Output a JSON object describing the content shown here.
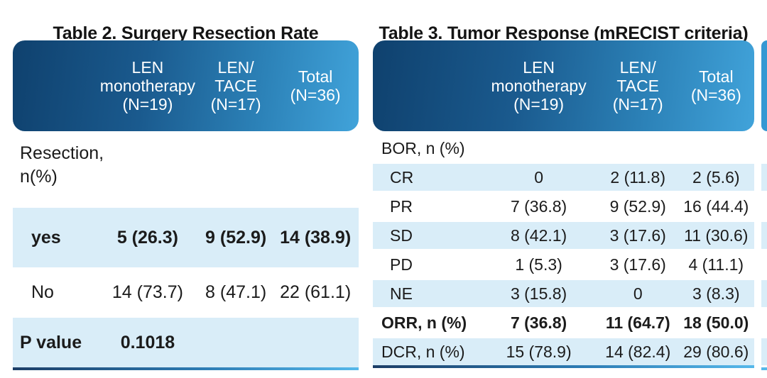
{
  "colors": {
    "header_gradient_left": "#0f416e",
    "header_gradient_right": "#41a3da",
    "row_highlight": "#d9edf8",
    "accent_line_left": "#1c3e67",
    "accent_line_right": "#56b8ea",
    "header_text": "#ffffff",
    "body_text": "#1b1b1b"
  },
  "table2": {
    "title": "Table 2. Surgery Resection Rate",
    "header": {
      "col1": [
        "LEN",
        "monotherapy",
        "(N=19)"
      ],
      "col2": [
        "LEN/",
        "TACE",
        "(N=17)"
      ],
      "col3": [
        "Total",
        "(N=36)"
      ]
    },
    "rows": {
      "resection": {
        "label_line1": "Resection,",
        "label_line2": "n(%)"
      },
      "yes": {
        "label": "yes",
        "col1": "5 (26.3)",
        "col2": "9 (52.9)",
        "col3": "14 (38.9)"
      },
      "no": {
        "label": "No",
        "col1": "14 (73.7)",
        "col2": "8 (47.1)",
        "col3": "22 (61.1)"
      },
      "pvalue": {
        "label": "P value",
        "value": "0.1018"
      }
    }
  },
  "table3": {
    "title": "Table 3. Tumor Response (mRECIST criteria)",
    "header": {
      "col1": [
        "LEN",
        "monotherapy",
        "(N=19)"
      ],
      "col2": [
        "LEN/",
        "TACE",
        "(N=17)"
      ],
      "col3": [
        "Total",
        "(N=36)"
      ]
    },
    "rows": [
      {
        "label": "BOR, n (%)",
        "col1": "",
        "col2": "",
        "col3": ""
      },
      {
        "label": "CR",
        "col1": "0",
        "col2": "2 (11.8)",
        "col3": "2 (5.6)"
      },
      {
        "label": "PR",
        "col1": "7 (36.8)",
        "col2": "9 (52.9)",
        "col3": "16 (44.4)"
      },
      {
        "label": "SD",
        "col1": "8 (42.1)",
        "col2": "3 (17.6)",
        "col3": "11 (30.6)"
      },
      {
        "label": "PD",
        "col1": "1 (5.3)",
        "col2": "3 (17.6)",
        "col3": "4 (11.1)"
      },
      {
        "label": "NE",
        "col1": "3 (15.8)",
        "col2": "0",
        "col3": "3 (8.3)"
      },
      {
        "label": "ORR, n (%)",
        "col1": "7 (36.8)",
        "col2": "11 (64.7)",
        "col3": "18 (50.0)"
      },
      {
        "label": "DCR, n (%)",
        "col1": "15 (78.9)",
        "col2": "14 (82.4)",
        "col3": "29 (80.6)"
      }
    ]
  }
}
